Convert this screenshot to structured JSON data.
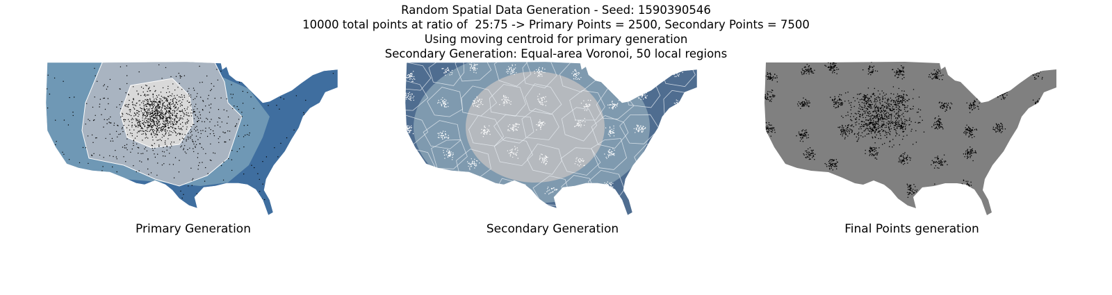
{
  "figure": {
    "title_lines": [
      "Random Spatial Data Generation - Seed: 1590390546",
      "10000 total points at ratio of  25:75 -> Primary Points = 2500, Secondary Points = 7500",
      "Using moving centroid for primary generation",
      "Secondary Generation: Equal-area Voronoi, 50 local regions"
    ]
  },
  "panels": [
    {
      "id": "primary",
      "caption": "Primary Generation",
      "point_color": "#000000",
      "colors": [
        "#3d6d9e",
        "#6f97b4",
        "#a8b3c0",
        "#d8d8d8"
      ]
    },
    {
      "id": "secondary",
      "caption": "Secondary Generation",
      "point_color": "#ffffff",
      "colors": [
        "#4b6a8e",
        "#7d98ad",
        "#b4b8bd"
      ]
    },
    {
      "id": "final",
      "caption": "Final Points generation",
      "point_color": "#000000",
      "colors": [
        "#808080"
      ]
    }
  ]
}
